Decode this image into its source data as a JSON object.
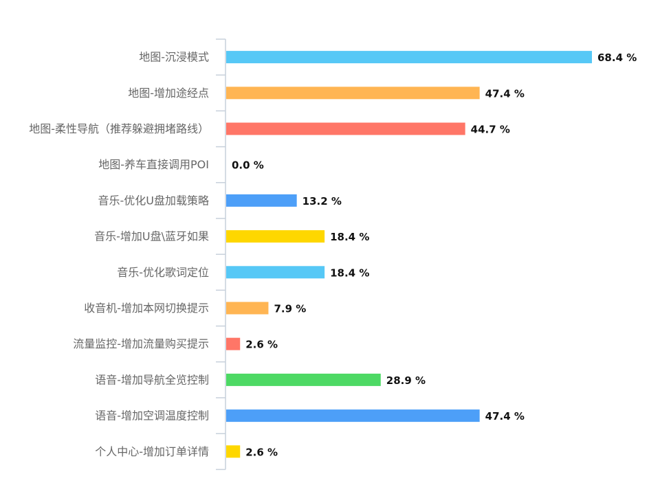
{
  "chart_data": {
    "type": "bar",
    "orientation": "horizontal",
    "title": "",
    "xlabel": "",
    "ylabel": "",
    "xlim": [
      0,
      68.4
    ],
    "value_suffix": " %",
    "grid": false,
    "categories": [
      "地图-沉浸模式",
      "地图-增加途经点",
      "地图-柔性导航（推荐躲避拥堵路线）",
      "地图-养车直接调用POI",
      "音乐-优化U盘加载策略",
      "音乐-增加U盘\\蓝牙如果",
      "音乐-优化歌词定位",
      "收音机-增加本网切换提示",
      "流量监控-增加流量购买提示",
      "语音-增加导航全览控制",
      "语音-增加空调温度控制",
      "个人中心-增加订单详情"
    ],
    "values": [
      68.4,
      47.4,
      44.7,
      0.0,
      13.2,
      18.4,
      18.4,
      7.9,
      2.6,
      28.9,
      47.4,
      2.6
    ],
    "value_labels": [
      "68.4 %",
      "47.4 %",
      "44.7 %",
      "0.0 %",
      "13.2 %",
      "18.4 %",
      "18.4 %",
      "7.9 %",
      "2.6 %",
      "28.9 %",
      "47.4 %",
      "2.6 %"
    ],
    "colors": [
      "#56C8F6",
      "#FFB553",
      "#FF7667",
      "#56C8F6",
      "#4D9FF8",
      "#FED700",
      "#56C8F6",
      "#FFB553",
      "#FF7667",
      "#4DD964",
      "#4D9FF8",
      "#FED700"
    ],
    "axis_color": "#C7D0DB"
  }
}
